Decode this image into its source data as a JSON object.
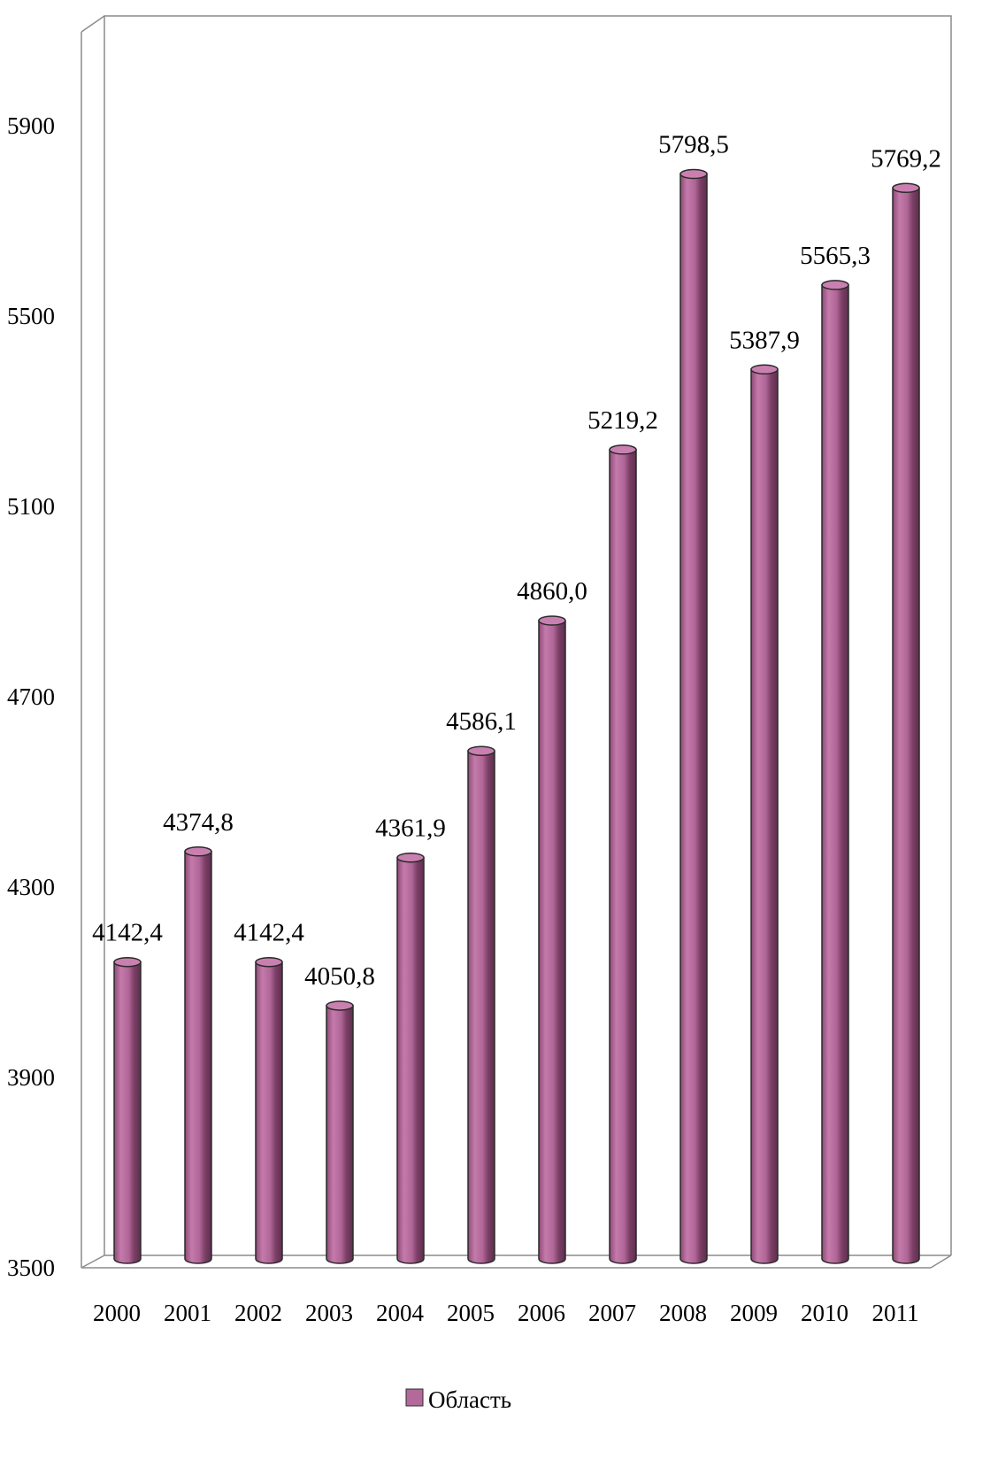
{
  "chart_data": {
    "type": "bar",
    "title": "",
    "xlabel": "",
    "ylabel": "",
    "categories": [
      "2000",
      "2001",
      "2002",
      "2003",
      "2004",
      "2005",
      "2006",
      "2007",
      "2008",
      "2009",
      "2010",
      "2011"
    ],
    "series": [
      {
        "name": "Область",
        "values": [
          4142.4,
          4374.8,
          4142.4,
          4050.8,
          4361.9,
          4586.1,
          4860.0,
          5219.2,
          5798.5,
          5387.9,
          5565.3,
          5769.2
        ],
        "labels": [
          "4142,4",
          "4374,8",
          "4142,4",
          "4050,8",
          "4361,9",
          "4586,1",
          "4860,0",
          "5219,2",
          "5798,5",
          "5387,9",
          "5565,3",
          "5769,2"
        ],
        "color": "#b5699b"
      }
    ],
    "ylim": [
      3500,
      6200
    ],
    "yticks": [
      3500,
      3900,
      4300,
      4700,
      5100,
      5500,
      5900
    ],
    "grid": false,
    "legend": "bottom",
    "style": "3d-cylinder"
  }
}
